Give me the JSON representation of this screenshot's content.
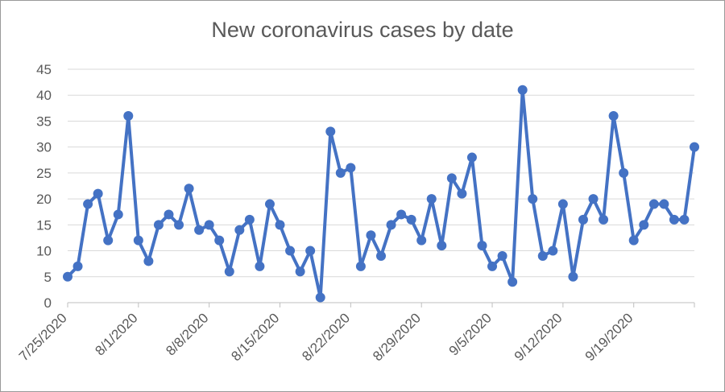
{
  "chart_data": {
    "type": "line",
    "title": "New coronavirus cases by date",
    "xlabel": "",
    "ylabel": "",
    "ylim": [
      0,
      45
    ],
    "y_ticks": [
      "0",
      "5",
      "10",
      "15",
      "20",
      "25",
      "30",
      "35",
      "40",
      "45"
    ],
    "x_tick_labels": [
      "7/25/2020",
      "8/1/2020",
      "8/8/2020",
      "8/15/2020",
      "8/22/2020",
      "8/29/2020",
      "9/5/2020",
      "9/12/2020",
      "9/19/2020"
    ],
    "x_start": "7/25/2020",
    "x_end": "9/27/2020",
    "grid": true,
    "legend": "none",
    "colors": {
      "line": "#4472c4",
      "grid": "#d9d9d9",
      "axis": "#bfbfbf",
      "text": "#595959"
    },
    "series": [
      {
        "values": [
          5,
          7,
          19,
          21,
          12,
          17,
          36,
          12,
          8,
          15,
          17,
          15,
          22,
          14,
          15,
          12,
          6,
          14,
          16,
          7,
          19,
          15,
          10,
          6,
          10,
          1,
          33,
          25,
          26,
          7,
          13,
          9,
          15,
          17,
          16,
          12,
          20,
          11,
          24,
          21,
          28,
          11,
          7,
          9,
          4,
          41,
          20,
          9,
          10,
          19,
          5,
          16,
          20,
          16,
          36,
          25,
          12,
          15,
          19,
          19,
          16,
          16,
          30
        ]
      }
    ]
  }
}
